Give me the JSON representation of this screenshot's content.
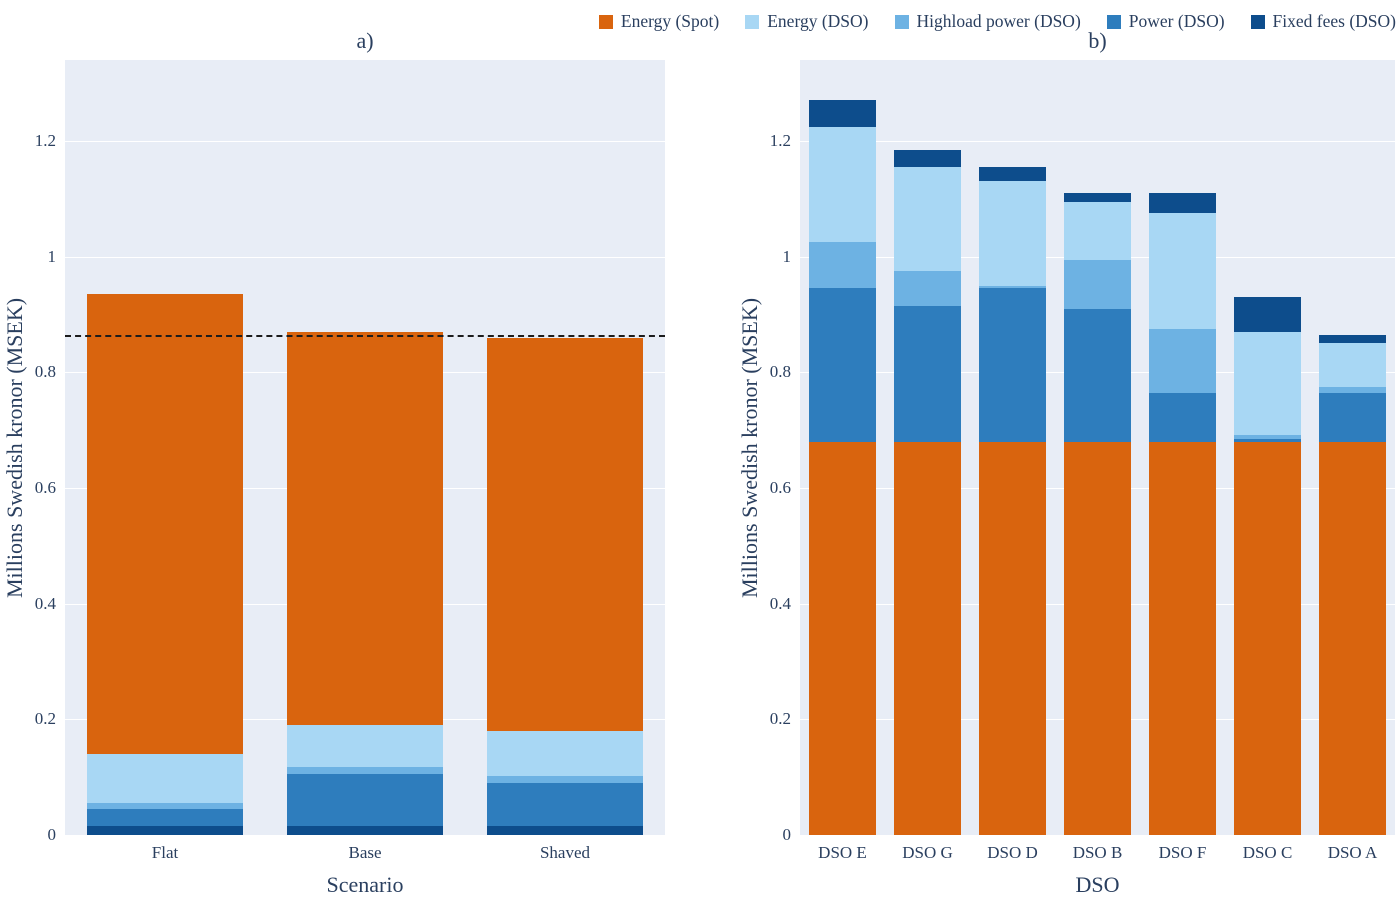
{
  "style": {
    "text_color": "#2a3f5f",
    "plot_background": "#e8edf6",
    "gridline_color": "#ffffff",
    "dashed_line_color": "#1c1c1c"
  },
  "legend": {
    "items": [
      {
        "label": "Energy (Spot)",
        "color": "#d9640e"
      },
      {
        "label": "Energy (DSO)",
        "color": "#a8d7f4"
      },
      {
        "label": "Highload power (DSO)",
        "color": "#6db2e3"
      },
      {
        "label": "Power (DSO)",
        "color": "#2e7dbd"
      },
      {
        "label": "Fixed fees (DSO)",
        "color": "#0d4d8c"
      }
    ]
  },
  "chart_data": [
    {
      "type": "bar",
      "stacked": true,
      "title": "a)",
      "xlabel": "Scenario",
      "ylabel": "Millions Swedish kronor (MSEK)",
      "categories": [
        "Flat",
        "Base",
        "Shaved"
      ],
      "series": [
        {
          "name": "Fixed fees (DSO)",
          "values": [
            0.015,
            0.015,
            0.015
          ]
        },
        {
          "name": "Power (DSO)",
          "values": [
            0.03,
            0.09,
            0.075
          ]
        },
        {
          "name": "Highload power (DSO)",
          "values": [
            0.01,
            0.012,
            0.012
          ]
        },
        {
          "name": "Energy (DSO)",
          "values": [
            0.085,
            0.073,
            0.078
          ]
        },
        {
          "name": "Energy (Spot)",
          "values": [
            0.795,
            0.68,
            0.68
          ]
        }
      ],
      "totals": [
        0.935,
        0.87,
        0.86
      ],
      "dashed_line": 0.865,
      "ylim": [
        0,
        1.34
      ],
      "yticks": [
        0,
        0.2,
        0.4,
        0.6,
        0.8,
        1,
        1.2
      ],
      "bar_width_frac": 0.78,
      "grid": true,
      "legend_position": "top-right"
    },
    {
      "type": "bar",
      "stacked": true,
      "title": "b)",
      "xlabel": "DSO",
      "ylabel": "Millions Swedish kronor (MSEK)",
      "categories": [
        "DSO E",
        "DSO G",
        "DSO D",
        "DSO B",
        "DSO F",
        "DSO C",
        "DSO A"
      ],
      "series": [
        {
          "name": "Energy (Spot)",
          "values": [
            0.68,
            0.68,
            0.68,
            0.68,
            0.68,
            0.68,
            0.68
          ]
        },
        {
          "name": "Power (DSO)",
          "values": [
            0.265,
            0.235,
            0.265,
            0.23,
            0.085,
            0.005,
            0.085
          ]
        },
        {
          "name": "Highload power (DSO)",
          "values": [
            0.08,
            0.06,
            0.005,
            0.085,
            0.11,
            0.007,
            0.01
          ]
        },
        {
          "name": "Energy (DSO)",
          "values": [
            0.2,
            0.18,
            0.18,
            0.1,
            0.2,
            0.178,
            0.075
          ]
        },
        {
          "name": "Fixed fees (DSO)",
          "values": [
            0.045,
            0.03,
            0.025,
            0.015,
            0.035,
            0.06,
            0.015
          ]
        }
      ],
      "totals": [
        1.27,
        1.185,
        1.155,
        1.11,
        1.11,
        0.93,
        0.865
      ],
      "ylim": [
        0,
        1.34
      ],
      "yticks": [
        0,
        0.2,
        0.4,
        0.6,
        0.8,
        1,
        1.2
      ],
      "bar_width_frac": 0.78,
      "grid": true
    }
  ]
}
